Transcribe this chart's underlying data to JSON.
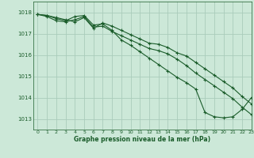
{
  "title": "Graphe pression niveau de la mer (hPa)",
  "bg_color": "#cce8d8",
  "grid_color": "#aaccbb",
  "line_color": "#1a5c2a",
  "xlim": [
    -0.5,
    23
  ],
  "ylim": [
    1012.5,
    1018.5
  ],
  "yticks": [
    1013,
    1014,
    1015,
    1016,
    1017,
    1018
  ],
  "xticks": [
    0,
    1,
    2,
    3,
    4,
    5,
    6,
    7,
    8,
    9,
    10,
    11,
    12,
    13,
    14,
    15,
    16,
    17,
    18,
    19,
    20,
    21,
    22,
    23
  ],
  "line1": [
    1017.9,
    1017.85,
    1017.7,
    1017.6,
    1017.8,
    1017.85,
    1017.4,
    1017.45,
    1017.15,
    1016.7,
    1016.45,
    1016.15,
    1015.85,
    1015.55,
    1015.25,
    1014.95,
    1014.7,
    1014.4,
    1013.3,
    1013.1,
    1013.05,
    1013.1,
    1013.45,
    1014.0
  ],
  "line2": [
    1017.9,
    1017.8,
    1017.6,
    1017.55,
    1017.65,
    1017.8,
    1017.3,
    1017.35,
    1017.1,
    1016.9,
    1016.7,
    1016.5,
    1016.3,
    1016.2,
    1016.05,
    1015.8,
    1015.5,
    1015.15,
    1014.85,
    1014.55,
    1014.25,
    1013.95,
    1013.55,
    1013.2
  ],
  "line3": [
    1017.9,
    1017.85,
    1017.75,
    1017.65,
    1017.55,
    1017.75,
    1017.25,
    1017.5,
    1017.35,
    1017.15,
    1016.95,
    1016.75,
    1016.55,
    1016.5,
    1016.35,
    1016.1,
    1015.95,
    1015.65,
    1015.35,
    1015.05,
    1014.75,
    1014.45,
    1014.05,
    1013.7
  ]
}
